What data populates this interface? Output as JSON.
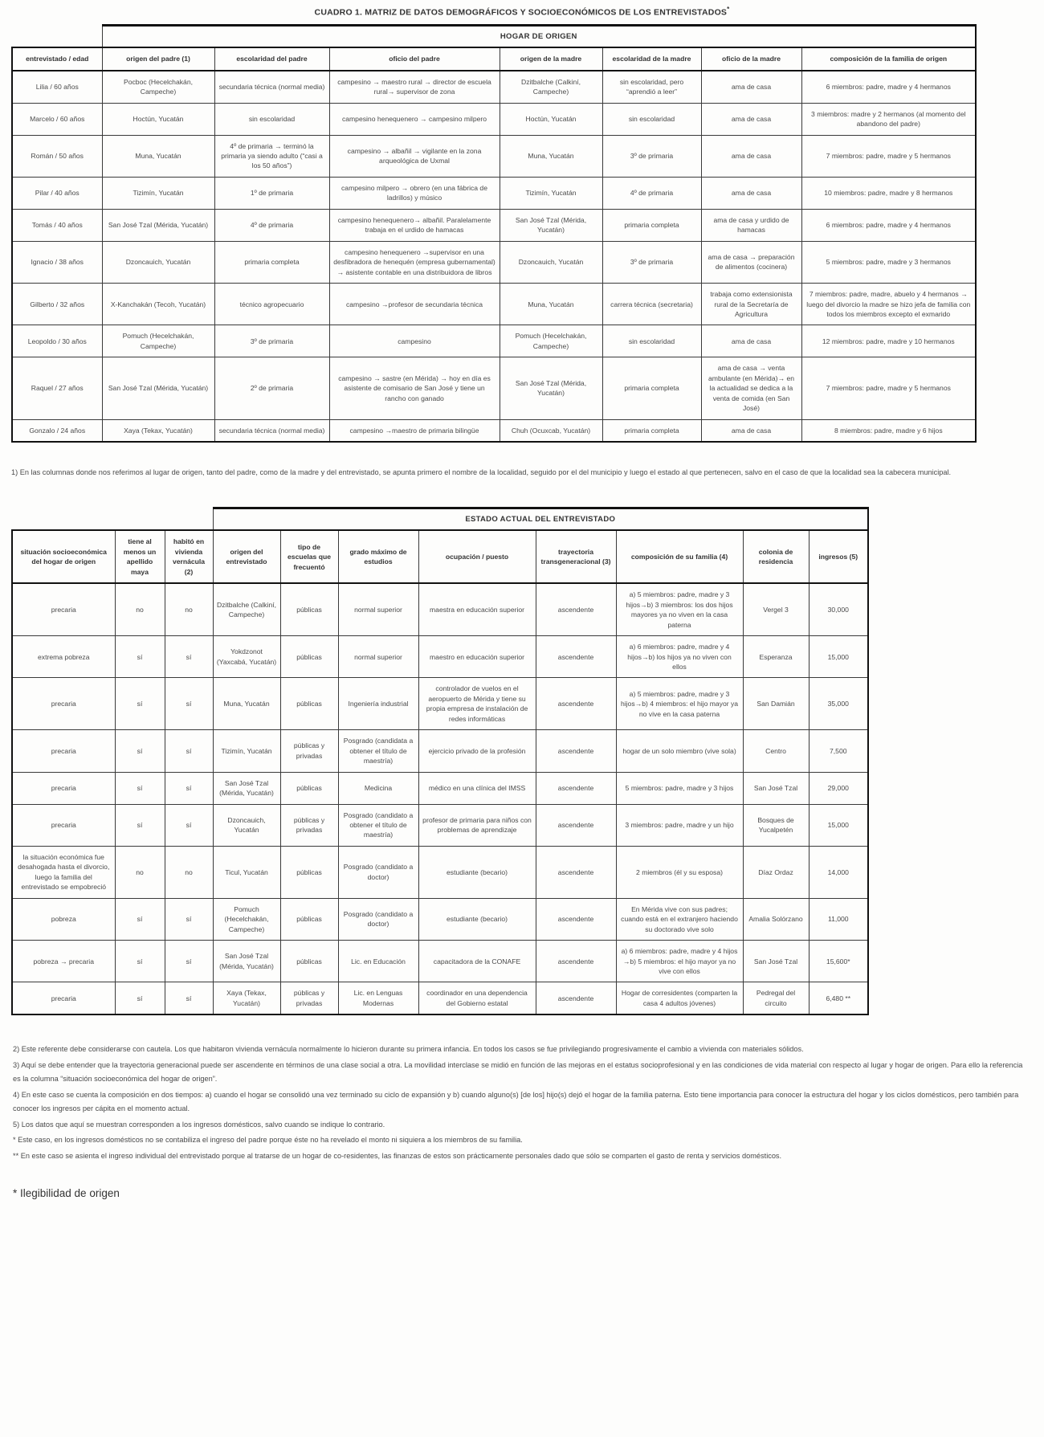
{
  "page": {
    "title": "CUADRO 1. MATRIZ DE DATOS DEMOGRÁFICOS Y SOCIOECONÓMICOS DE LOS ENTREVISTADOS",
    "title_marker": "*"
  },
  "table1": {
    "band": "HOGAR DE ORIGEN",
    "header": [
      "entrevistado / edad",
      "origen del padre (1)",
      "escolaridad del padre",
      "oficio del padre",
      "origen de la madre",
      "escolaridad de la madre",
      "oficio de la madre",
      "composición de la familia de origen"
    ],
    "rows": [
      [
        "Lilia / 60 años",
        "Pocboc (Hecelchakán, Campeche)",
        "secundaria técnica (normal media)",
        "campesino → maestro rural → director de escuela rural→ supervisor de zona",
        "Dzitbalche (Calkiní, Campeche)",
        "sin escolaridad, pero “aprendió a leer”",
        "ama de casa",
        "6 miembros: padre, madre y 4 hermanos"
      ],
      [
        "Marcelo / 60 años",
        "Hoctún, Yucatán",
        "sin escolaridad",
        "campesino henequenero → campesino milpero",
        "Hoctún, Yucatán",
        "sin escolaridad",
        "ama de casa",
        "3 miembros: madre y 2 hermanos (al momento del abandono del padre)"
      ],
      [
        "Román / 50 años",
        "Muna, Yucatán",
        "4º de primaria → terminó la primaria ya siendo adulto (“casi a los 50 años”)",
        "campesino → albañil → vigilante en la zona arqueológica de Uxmal",
        "Muna, Yucatán",
        "3º de primaria",
        "ama de casa",
        "7 miembros: padre, madre y 5 hermanos"
      ],
      [
        "Pilar / 40 años",
        "Tizimín, Yucatán",
        "1º de primaria",
        "campesino milpero → obrero (en una fábrica de ladrillos) y músico",
        "Tizimín, Yucatán",
        "4º de primaria",
        "ama de casa",
        "10 miembros: padre, madre y 8 hermanos"
      ],
      [
        "Tomás / 40 años",
        "San José Tzal (Mérida, Yucatán)",
        "4º de primaria",
        "campesino henequenero→ albañil. Paralelamente trabaja en el urdido de hamacas",
        "San José Tzal (Mérida, Yucatán)",
        "primaria completa",
        "ama de casa y urdido de hamacas",
        "6 miembros: padre, madre y 4 hermanos"
      ],
      [
        "Ignacio / 38 años",
        "Dzoncauich, Yucatán",
        "primaria completa",
        "campesino henequenero →supervisor en una desfibradora de henequén (empresa gubernamental) → asistente contable en una distribuidora de libros",
        "Dzoncauich, Yucatán",
        "3º de primaria",
        "ama de casa → preparación de alimentos (cocinera)",
        "5 miembros: padre, madre y 3 hermanos"
      ],
      [
        "Gilberto / 32 años",
        "X-Kanchakán (Tecoh, Yucatán)",
        "técnico agropecuario",
        "campesino →profesor de secundaria técnica",
        "Muna, Yucatán",
        "carrera técnica (secretaria)",
        "trabaja como extensionista rural de la Secretaría de Agricultura",
        "7 miembros: padre, madre, abuelo y 4 hermanos → luego del divorcio la madre se hizo jefa de familia con todos los miembros excepto el exmarido"
      ],
      [
        "Leopoldo / 30 años",
        "Pomuch (Hecelchakán, Campeche)",
        "3º de primaria",
        "campesino",
        "Pomuch (Hecelchakán, Campeche)",
        "sin escolaridad",
        "ama de casa",
        "12 miembros: padre, madre y 10 hermanos"
      ],
      [
        "Raquel / 27 años",
        "San José Tzal (Mérida, Yucatán)",
        "2º de primaria",
        "campesino → sastre (en Mérida) → hoy en día es asistente de comisario de San José y tiene un rancho con ganado",
        "San José Tzal (Mérida, Yucatán)",
        "primaria completa",
        "ama de casa → venta ambulante (en Mérida)→ en la actualidad se dedica a la venta de comida (en San José)",
        "7 miembros: padre, madre y 5 hermanos"
      ],
      [
        "Gonzalo / 24 años",
        "Xaya (Tekax, Yucatán)",
        "secundaria técnica (normal media)",
        "campesino →maestro de primaria bilingüe",
        "Chuh (Ocuxcab, Yucatán)",
        "primaria completa",
        "ama de casa",
        "8 miembros: padre, madre y 6 hijos"
      ]
    ],
    "footnote": "1) En las columnas donde nos referimos al lugar de origen, tanto del padre, como de la madre y del entrevistado, se apunta primero el nombre de la localidad, seguido por el del municipio y luego el estado al que pertenecen, salvo en el caso de que la localidad sea la cabecera municipal."
  },
  "table2": {
    "band": "ESTADO ACTUAL DEL ENTREVISTADO",
    "header": [
      "situación socioeconómica del hogar de origen",
      "tiene al menos un apellido maya",
      "habitó en vivienda vernácula (2)",
      "origen del entrevistado",
      "tipo de escuelas que frecuentó",
      "grado máximo de estudios",
      "ocupación / puesto",
      "trayectoria transgeneracional (3)",
      "composición de su familia (4)",
      "colonia de residencia",
      "ingresos (5)"
    ],
    "rows": [
      [
        "precaria",
        "no",
        "no",
        "Dzitbalche (Calkiní, Campeche)",
        "públicas",
        "normal superior",
        "maestra en educación superior",
        "ascendente",
        "a) 5 miembros: padre, madre y 3 hijos→b) 3 miembros: los dos hijos mayores ya no viven en la casa paterna",
        "Vergel 3",
        "30,000"
      ],
      [
        "extrema pobreza",
        "sí",
        "sí",
        "Yokdzonot (Yaxcabá, Yucatán)",
        "públicas",
        "normal superior",
        "maestro en educación superior",
        "ascendente",
        "a) 6 miembros: padre, madre y 4 hijos→b) los hijos ya no viven con ellos",
        "Esperanza",
        "15,000"
      ],
      [
        "precaria",
        "sí",
        "sí",
        "Muna, Yucatán",
        "públicas",
        "Ingeniería industrial",
        "controlador de vuelos en el aeropuerto de Mérida y tiene su propia empresa de instalación de redes informáticas",
        "ascendente",
        "a) 5 miembros: padre, madre y 3 hijos→b) 4 miembros: el hijo mayor ya no vive en la casa paterna",
        "San Damián",
        "35,000"
      ],
      [
        "precaria",
        "sí",
        "sí",
        "Tizimín, Yucatán",
        "públicas y privadas",
        "Posgrado (candidata a obtener el título de maestría)",
        "ejercicio privado de la profesión",
        "ascendente",
        "hogar de un solo miembro (vive sola)",
        "Centro",
        "7,500"
      ],
      [
        "precaria",
        "sí",
        "sí",
        "San José Tzal (Mérida, Yucatán)",
        "públicas",
        "Medicina",
        "médico en una clínica del IMSS",
        "ascendente",
        "5 miembros: padre, madre y 3 hijos",
        "San José Tzal",
        "29,000"
      ],
      [
        "precaria",
        "sí",
        "sí",
        "Dzoncauich, Yucatán",
        "públicas y privadas",
        "Posgrado (candidato a obtener el título de maestría)",
        "profesor de primaria para niños con problemas de aprendizaje",
        "ascendente",
        "3 miembros: padre, madre y un hijo",
        "Bosques de Yucalpetén",
        "15,000"
      ],
      [
        "la situación económica fue desahogada hasta el divorcio, luego la familia del entrevistado se empobreció",
        "no",
        "no",
        "Ticul, Yucatán",
        "públicas",
        "Posgrado (candidato a doctor)",
        "estudiante (becario)",
        "ascendente",
        "2 miembros (él y su esposa)",
        "Díaz Ordaz",
        "14,000"
      ],
      [
        "pobreza",
        "sí",
        "sí",
        "Pomuch (Hecelchakán, Campeche)",
        "públicas",
        "Posgrado (candidato a doctor)",
        "estudiante (becario)",
        "ascendente",
        "En Mérida vive con sus padres; cuando está en el extranjero haciendo su doctorado vive solo",
        "Amalia Solórzano",
        "11,000"
      ],
      [
        "pobreza → precaria",
        "sí",
        "sí",
        "San José Tzal (Mérida, Yucatán)",
        "públicas",
        "Lic. en Educación",
        "capacitadora de la CONAFE",
        "ascendente",
        "a) 6 miembros: padre, madre y 4 hijos →b) 5 miembros: el hijo mayor ya no vive con ellos",
        "San José Tzal",
        "15,600*"
      ],
      [
        "precaria",
        "sí",
        "sí",
        "Xaya (Tekax, Yucatán)",
        "públicas y privadas",
        "Lic. en Lenguas Modernas",
        "coordinador en una dependencia del Gobierno estatal",
        "ascendente",
        "Hogar de corresidentes (comparten la casa 4 adultos jóvenes)",
        "Pedregal del circuito",
        "6,480 **"
      ]
    ]
  },
  "footnotes": [
    "2) Este referente debe considerarse con cautela. Los que habitaron vivienda vernácula normalmente lo hicieron durante su primera infancia. En todos los casos se fue privilegiando progresivamente el cambio a vivienda con materiales sólidos.",
    "3) Aquí se debe entender que la trayectoria generacional puede ser ascendente en términos de una clase social a otra. La movilidad interclase se midió en función de las mejoras en el estatus socioprofesional y en las condiciones de vida material con respecto al lugar y hogar de origen. Para ello la referencia es la columna “situación socioeconómica del hogar de origen”.",
    "4) En este caso se cuenta la composición en dos tiempos: a) cuando el hogar se consolidó una vez terminado su ciclo de expansión y b) cuando alguno(s) [de los] hijo(s) dejó el hogar de la familia paterna. Esto tiene importancia para conocer la estructura del hogar y los ciclos domésticos, pero también para conocer los ingresos per cápita en el momento actual.",
    "5) Los datos que aquí se muestran corresponden a los ingresos domésticos, salvo cuando se indique lo contrario.",
    "* Este caso, en los ingresos domésticos no se contabiliza el ingreso del padre porque éste no ha revelado el monto ni siquiera a los miembros de su familia.",
    "** En este caso se asienta el ingreso individual del entrevistado porque al tratarse de un hogar de co-residentes, las finanzas de estos son prácticamente personales dado que sólo se comparten el gasto de renta y servicios domésticos."
  ],
  "bottom_note": "* Ilegibilidad de origen"
}
